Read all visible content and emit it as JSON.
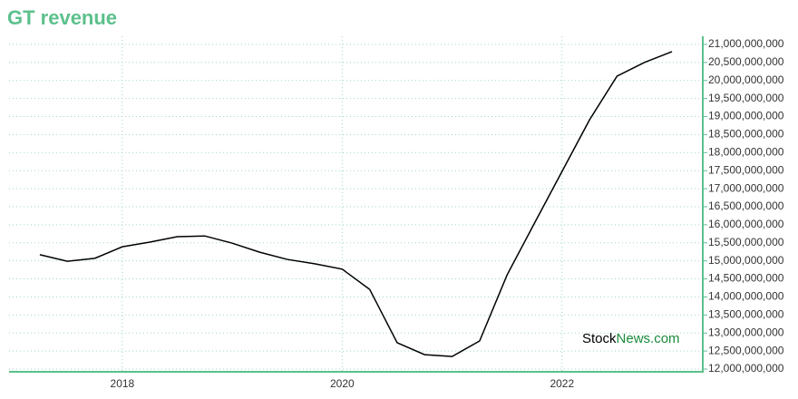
{
  "chart_data": {
    "type": "line",
    "title": "GT revenue",
    "watermark": [
      "Stock",
      "News.com"
    ],
    "x": [
      2017.25,
      2017.5,
      2017.75,
      2018.0,
      2018.25,
      2018.5,
      2018.75,
      2019.0,
      2019.25,
      2019.5,
      2019.75,
      2020.0,
      2020.25,
      2020.5,
      2020.75,
      2021.0,
      2021.25,
      2021.5,
      2021.75,
      2022.0,
      2022.25,
      2022.5,
      2022.75,
      2023.0
    ],
    "series": [
      {
        "name": "GT revenue",
        "color": "#000000",
        "values": [
          15170000000,
          14990000000,
          15070000000,
          15390000000,
          15520000000,
          15670000000,
          15690000000,
          15490000000,
          15240000000,
          15040000000,
          14920000000,
          14770000000,
          14210000000,
          12730000000,
          12400000000,
          12350000000,
          12780000000,
          14610000000,
          16050000000,
          17480000000,
          18910000000,
          20120000000,
          20500000000,
          20800000000
        ]
      }
    ],
    "xlim": [
      2016.97,
      2023.28
    ],
    "xticks": [
      2018,
      2020,
      2022
    ],
    "ylim": [
      11925000000,
      21225000000
    ],
    "yticks": [
      {
        "value": 12000000000,
        "label": "12,000,000,000"
      },
      {
        "value": 12500000000,
        "label": "12,500,000,000"
      },
      {
        "value": 13000000000,
        "label": "13,000,000,000"
      },
      {
        "value": 13500000000,
        "label": "13,500,000,000"
      },
      {
        "value": 14000000000,
        "label": "14,000,000,000"
      },
      {
        "value": 14500000000,
        "label": "14,500,000,000"
      },
      {
        "value": 15000000000,
        "label": "15,000,000,000"
      },
      {
        "value": 15500000000,
        "label": "15,500,000,000"
      },
      {
        "value": 16000000000,
        "label": "16,000,000,000"
      },
      {
        "value": 16500000000,
        "label": "16,500,000,000"
      },
      {
        "value": 17000000000,
        "label": "17,000,000,000"
      },
      {
        "value": 17500000000,
        "label": "17,500,000,000"
      },
      {
        "value": 18000000000,
        "label": "18,000,000,000"
      },
      {
        "value": 18500000000,
        "label": "18,500,000,000"
      },
      {
        "value": 19000000000,
        "label": "19,000,000,000"
      },
      {
        "value": 19500000000,
        "label": "19,500,000,000"
      },
      {
        "value": 20000000000,
        "label": "20,000,000,000"
      },
      {
        "value": 20500000000,
        "label": "20,500,000,000"
      },
      {
        "value": 21000000000,
        "label": "21,000,000,000"
      }
    ],
    "grid": true,
    "axis_color": "#5cc08c"
  }
}
